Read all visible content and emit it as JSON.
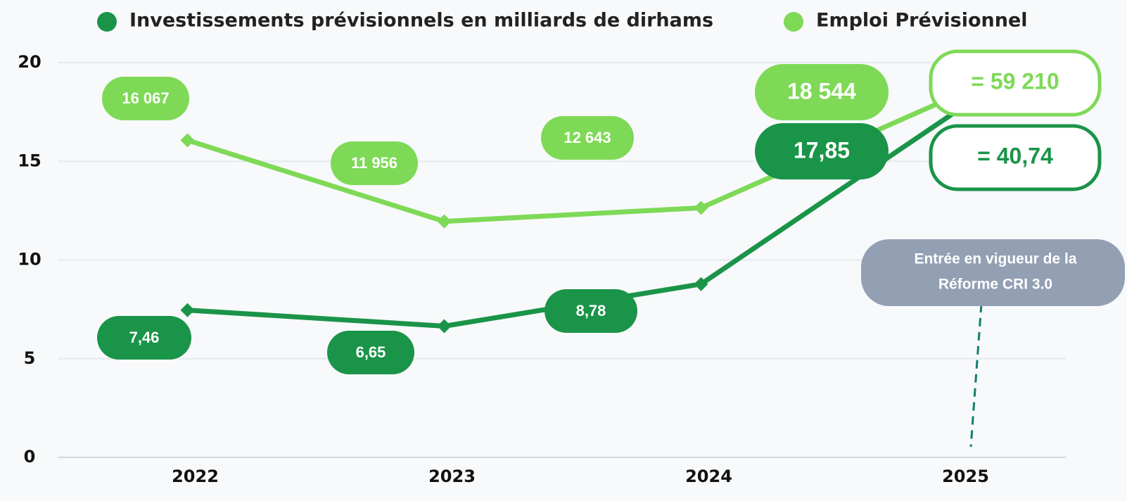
{
  "chart_data": {
    "type": "line",
    "categories": [
      "2022",
      "2023",
      "2024",
      "2025"
    ],
    "ylim": [
      0,
      20
    ],
    "yticks": [
      0,
      5,
      10,
      15,
      20
    ],
    "grid": true,
    "series": [
      {
        "name": "Investissements prévisionnels en milliards de dirhams",
        "color": "#1a9448",
        "values": [
          7.46,
          6.65,
          8.78,
          17.85
        ],
        "value_labels": [
          "7,46",
          "6,65",
          "8,78",
          "17,85"
        ],
        "total_label": "= 40,74"
      },
      {
        "name": "Emploi Prévisionnel",
        "color": "#7ed957",
        "values": [
          16.067,
          11.956,
          12.643,
          18.544
        ],
        "value_labels": [
          "16 067",
          "11 956",
          "12 643",
          "18 544"
        ],
        "total_label": "= 59 210"
      }
    ],
    "annotation": [
      "Entrée en vigueur de la",
      "Réforme CRI 3.0"
    ]
  }
}
